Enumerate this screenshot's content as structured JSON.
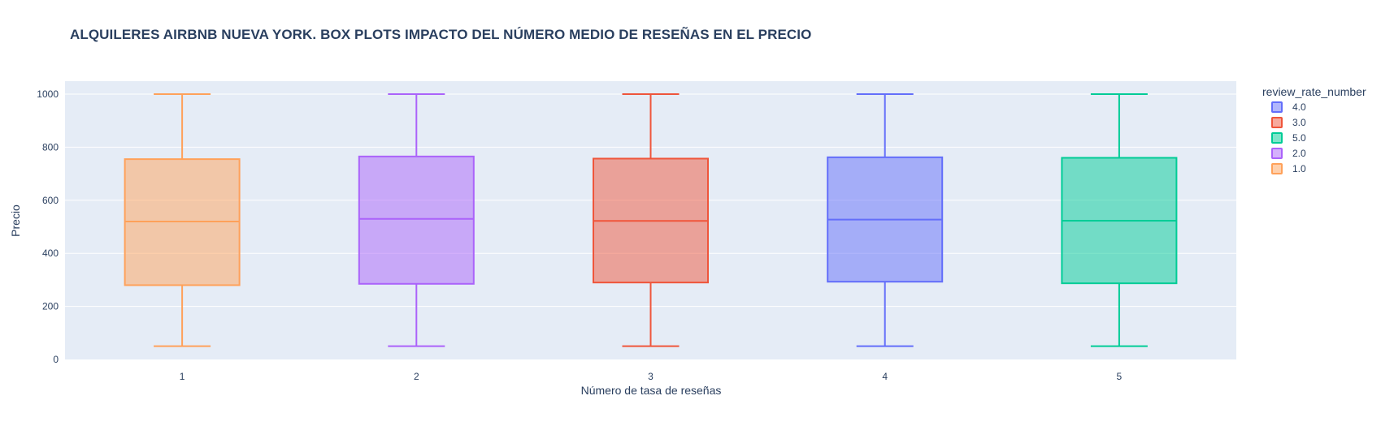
{
  "chart_data": {
    "type": "box",
    "title": "ALQUILERES AIRBNB NUEVA YORK. BOX PLOTS IMPACTO DEL NÚMERO MEDIO DE RESEÑAS EN EL PRECIO",
    "xlabel": "Número de tasa de reseñas",
    "ylabel": "Precio",
    "ylim": [
      0,
      1000
    ],
    "yticks": [
      0,
      200,
      400,
      600,
      800,
      1000
    ],
    "categories": [
      "1",
      "2",
      "3",
      "4",
      "5"
    ],
    "grid": true,
    "legend": {
      "title": "review_rate_number",
      "placement": "top-right",
      "items": [
        "4.0",
        "3.0",
        "5.0",
        "2.0",
        "1.0"
      ]
    },
    "series": [
      {
        "name": "1.0",
        "category": "1",
        "color": "#ffa15a",
        "min": 50,
        "q1": 280,
        "median": 520,
        "q3": 755,
        "max": 1000
      },
      {
        "name": "2.0",
        "category": "2",
        "color": "#ab63fa",
        "min": 50,
        "q1": 285,
        "median": 530,
        "q3": 765,
        "max": 1000
      },
      {
        "name": "3.0",
        "category": "3",
        "color": "#ef553b",
        "min": 50,
        "q1": 290,
        "median": 522,
        "q3": 757,
        "max": 1000
      },
      {
        "name": "4.0",
        "category": "4",
        "color": "#636efa",
        "min": 50,
        "q1": 293,
        "median": 527,
        "q3": 762,
        "max": 1000
      },
      {
        "name": "5.0",
        "category": "5",
        "color": "#00cc96",
        "min": 50,
        "q1": 287,
        "median": 523,
        "q3": 760,
        "max": 1000
      }
    ]
  }
}
